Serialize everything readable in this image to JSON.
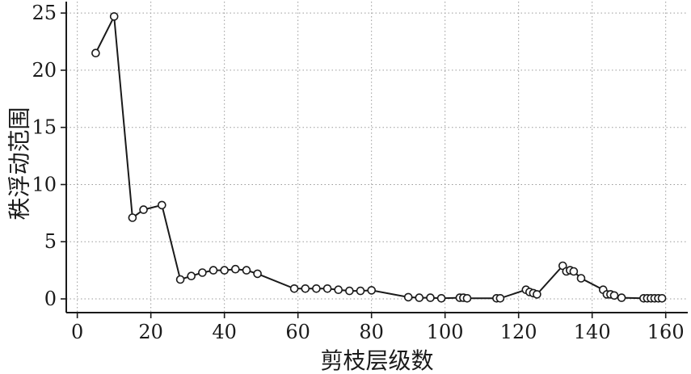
{
  "chart_data": {
    "type": "line",
    "xlabel": "剪枝层级数",
    "ylabel": "秩浮动范围",
    "xlim": [
      -3,
      166
    ],
    "ylim": [
      -1.2,
      26
    ],
    "xticks": [
      0,
      20,
      40,
      60,
      80,
      100,
      120,
      140,
      160
    ],
    "yticks": [
      0,
      5,
      10,
      15,
      20,
      25
    ],
    "grid": true,
    "legend": "none",
    "series": [
      {
        "markers": "open-circle",
        "color": "#1a1a1a",
        "x": [
          5,
          10,
          15,
          18,
          23,
          28,
          31,
          34,
          37,
          40,
          43,
          46,
          49,
          59,
          62,
          65,
          68,
          71,
          74,
          77,
          80,
          90,
          93,
          96,
          99,
          104,
          105,
          106,
          114,
          115,
          122,
          123,
          124,
          125,
          132,
          133,
          134,
          135,
          137,
          143,
          144,
          145,
          146,
          148,
          154,
          155,
          156,
          157,
          158,
          159
        ],
        "y": [
          21.5,
          24.7,
          7.1,
          7.8,
          8.2,
          1.7,
          2.0,
          2.3,
          2.5,
          2.5,
          2.6,
          2.5,
          2.2,
          0.9,
          0.9,
          0.9,
          0.9,
          0.8,
          0.7,
          0.7,
          0.75,
          0.15,
          0.1,
          0.1,
          0.05,
          0.1,
          0.1,
          0.05,
          0.05,
          0.05,
          0.8,
          0.6,
          0.5,
          0.4,
          2.9,
          2.4,
          2.5,
          2.4,
          1.8,
          0.8,
          0.4,
          0.4,
          0.3,
          0.1,
          0.05,
          0.05,
          0.05,
          0.05,
          0.05,
          0.05
        ]
      }
    ]
  }
}
